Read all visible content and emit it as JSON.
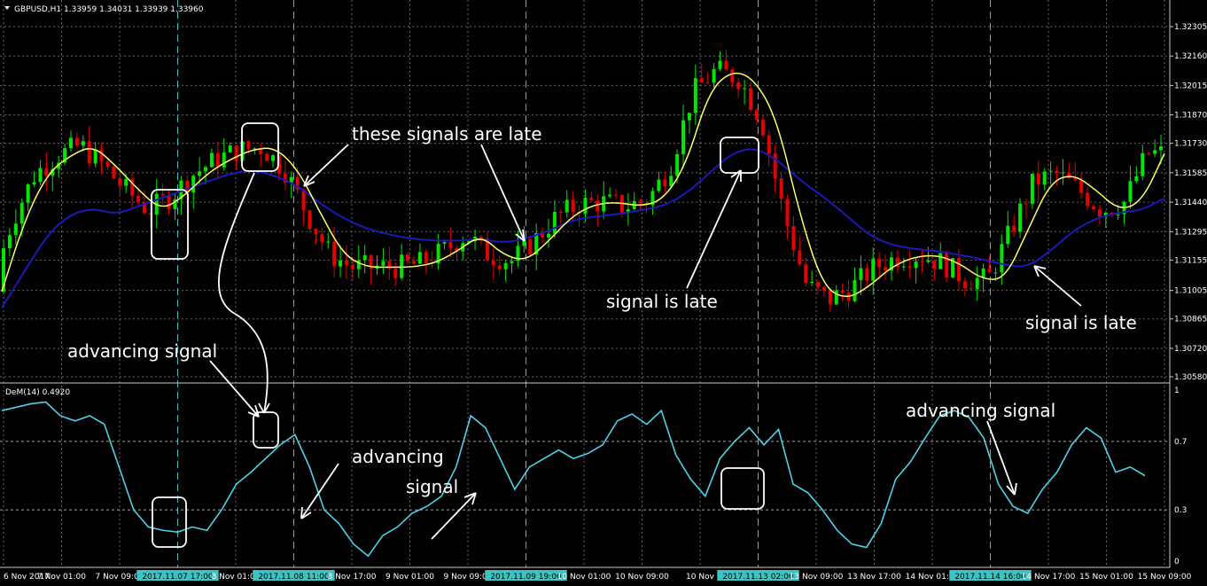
{
  "main_title": "GBPUSD,H1  1.33959 1.34031 1.33939 1.33960",
  "indicator_title": "DeM(14) 0.4920",
  "colors": {
    "background": "#000000",
    "bull": "#00e600",
    "bear": "#e60000",
    "fast_ma": "#ffff66",
    "slow_ma": "#1a1ab8",
    "demarker": "#4dd2e6",
    "vline": "#3cc3c3",
    "highlight_bg": "#3cc3c3"
  },
  "annotations": [
    "these signals are late",
    "signal is late",
    "signal is late",
    "advancing signal",
    "advancing",
    "signal",
    "advancing signal"
  ],
  "chart_data": [
    {
      "type": "candlestick",
      "title": "GBPUSD,H1  1.33959 1.34031 1.33939 1.33960",
      "price_axis_ticks": [
        "1.32305",
        "1.32160",
        "1.32015",
        "1.31870",
        "1.31730",
        "1.31585",
        "1.31440",
        "1.31295",
        "1.31155",
        "1.31005",
        "1.30865",
        "1.30720",
        "1.30580"
      ],
      "ylim": [
        1.3058,
        1.3234
      ],
      "time_labels": [
        "6 Nov 2017",
        "7 Nov 01:00",
        "7 Nov 09:00",
        "2017.11.07 17:00",
        "8 Nov 01:00",
        "2017.11.08 11:00",
        "8 Nov 17:00",
        "9 Nov 01:00",
        "9 Nov 09:00",
        "2017.11.09 19:00",
        "10 Nov 01:00",
        "10 Nov 09:00",
        "10 Nov",
        "2017.11.13 02:00",
        "13 Nov 09:00",
        "13 Nov 17:00",
        "14 Nov 01:00",
        "2017.11.14 16:00",
        "14 Nov 17:00",
        "15 Nov 01:00",
        "15 Nov 09:00"
      ],
      "highlighted_times": [
        "2017.11.07 17:00",
        "2017.11.08 11:00",
        "2017.11.09 19:00",
        "2017.11.13 02:00",
        "2017.11.14 16:00"
      ],
      "fast_ma_path": [
        1.31,
        1.3135,
        1.3158,
        1.3167,
        1.3172,
        1.3162,
        1.315,
        1.314,
        1.3147,
        1.3158,
        1.3165,
        1.317,
        1.3171,
        1.316,
        1.3138,
        1.3118,
        1.3112,
        1.3112,
        1.3112,
        1.3114,
        1.312,
        1.3128,
        1.3118,
        1.3115,
        1.3125,
        1.3137,
        1.3143,
        1.3144,
        1.3142,
        1.3145,
        1.3162,
        1.3198,
        1.3209,
        1.3205,
        1.3185,
        1.3138,
        1.3103,
        1.3096,
        1.3102,
        1.3112,
        1.3117,
        1.3118,
        1.3114,
        1.3106,
        1.3106,
        1.313,
        1.3154,
        1.3158,
        1.315,
        1.314,
        1.3144,
        1.3168
      ],
      "slow_ma_path": [
        1.3092,
        1.311,
        1.3128,
        1.3138,
        1.3141,
        1.3138,
        1.3142,
        1.3146,
        1.315,
        1.3154,
        1.3158,
        1.316,
        1.3157,
        1.3152,
        1.3143,
        1.3136,
        1.3131,
        1.3128,
        1.3126,
        1.3125,
        1.3125,
        1.3126,
        1.3124,
        1.3126,
        1.313,
        1.3135,
        1.3137,
        1.3138,
        1.314,
        1.3142,
        1.3148,
        1.3158,
        1.3168,
        1.3171,
        1.3165,
        1.3155,
        1.3147,
        1.3138,
        1.3128,
        1.3123,
        1.3121,
        1.312,
        1.3118,
        1.3116,
        1.3113,
        1.3112,
        1.312,
        1.313,
        1.3136,
        1.3139,
        1.314,
        1.3146
      ]
    },
    {
      "type": "line",
      "title": "DeM(14) 0.4920",
      "y_ticks": [
        "1",
        "0.7",
        "0.3",
        "0"
      ],
      "ylim": [
        0,
        1
      ],
      "levels": [
        0.7,
        0.3
      ],
      "values": [
        0.88,
        0.9,
        0.92,
        0.93,
        0.85,
        0.82,
        0.85,
        0.8,
        0.55,
        0.3,
        0.2,
        0.18,
        0.17,
        0.2,
        0.18,
        0.3,
        0.45,
        0.52,
        0.6,
        0.68,
        0.74,
        0.55,
        0.3,
        0.22,
        0.1,
        0.03,
        0.15,
        0.2,
        0.28,
        0.32,
        0.38,
        0.55,
        0.85,
        0.78,
        0.6,
        0.42,
        0.55,
        0.6,
        0.65,
        0.6,
        0.63,
        0.68,
        0.82,
        0.86,
        0.8,
        0.88,
        0.62,
        0.48,
        0.38,
        0.6,
        0.7,
        0.78,
        0.68,
        0.77,
        0.45,
        0.4,
        0.3,
        0.18,
        0.1,
        0.08,
        0.22,
        0.48,
        0.58,
        0.72,
        0.85,
        0.88,
        0.84,
        0.72,
        0.45,
        0.32,
        0.28,
        0.42,
        0.52,
        0.68,
        0.78,
        0.72,
        0.52,
        0.55,
        0.5
      ]
    }
  ]
}
